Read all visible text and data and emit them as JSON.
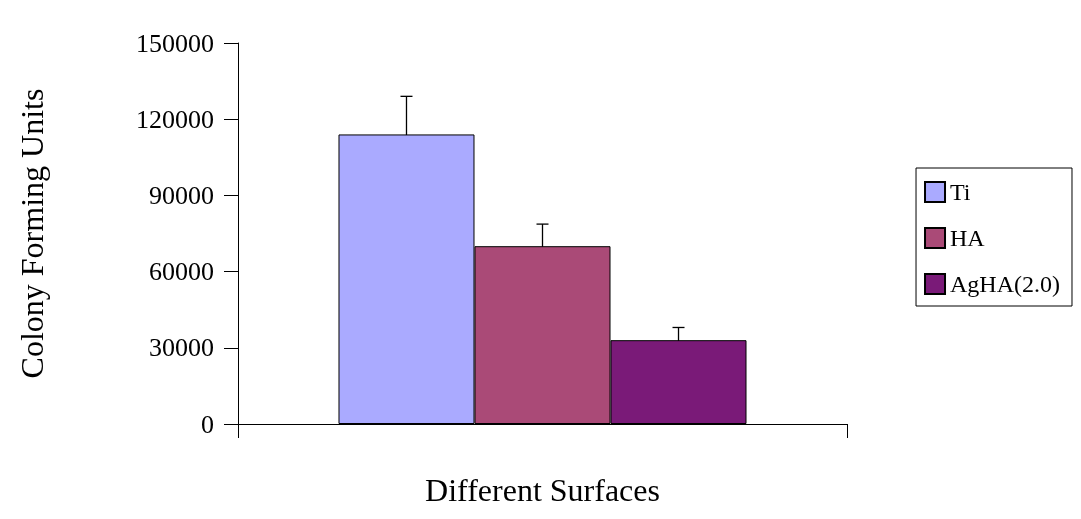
{
  "chart_data": {
    "type": "bar",
    "ylabel": "Colony Forming Units",
    "xlabel": "Different Surfaces",
    "categories": [
      null
    ],
    "series": [
      {
        "name": "Ti",
        "color": "#aaaaff",
        "values": [
          114000
        ],
        "errors": [
          15000
        ]
      },
      {
        "name": "HA",
        "color": "#aa4a77",
        "values": [
          70000
        ],
        "errors": [
          8700
        ]
      },
      {
        "name": "AgHA(2.0)",
        "color": "#7a1a78",
        "values": [
          33000
        ],
        "errors": [
          5000
        ]
      }
    ],
    "ylim": [
      0,
      150000
    ],
    "yticks": [
      0,
      30000,
      60000,
      90000,
      120000,
      150000
    ],
    "grid": false,
    "legend": "right"
  }
}
